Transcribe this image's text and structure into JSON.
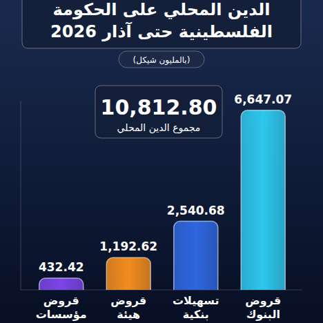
{
  "chart_data": {
    "type": "bar",
    "title": "الدين المحلي على الحكومة الفلسطينية حتى آذار 2026",
    "subtitle": "(بالمليون شيكل)",
    "annotations": [
      "10,812.80",
      "مجموع الدين المحلي"
    ],
    "categories": [
      "قروض مؤسسات",
      "قروض هيئة",
      "تسهيلات بنكية",
      "قروض البنوك"
    ],
    "values": [
      432.42,
      1192.62,
      2540.68,
      6647.07
    ],
    "value_labels": [
      "432.42",
      "1,192.62",
      "2,540.68",
      "6,647.07"
    ],
    "colors": [
      "#7b45e6",
      "#f28c1e",
      "#2f66de",
      "#2ec6ec"
    ],
    "ylim": [
      0,
      7000
    ],
    "data_labels": true,
    "tick_labels": false,
    "grid": false
  }
}
